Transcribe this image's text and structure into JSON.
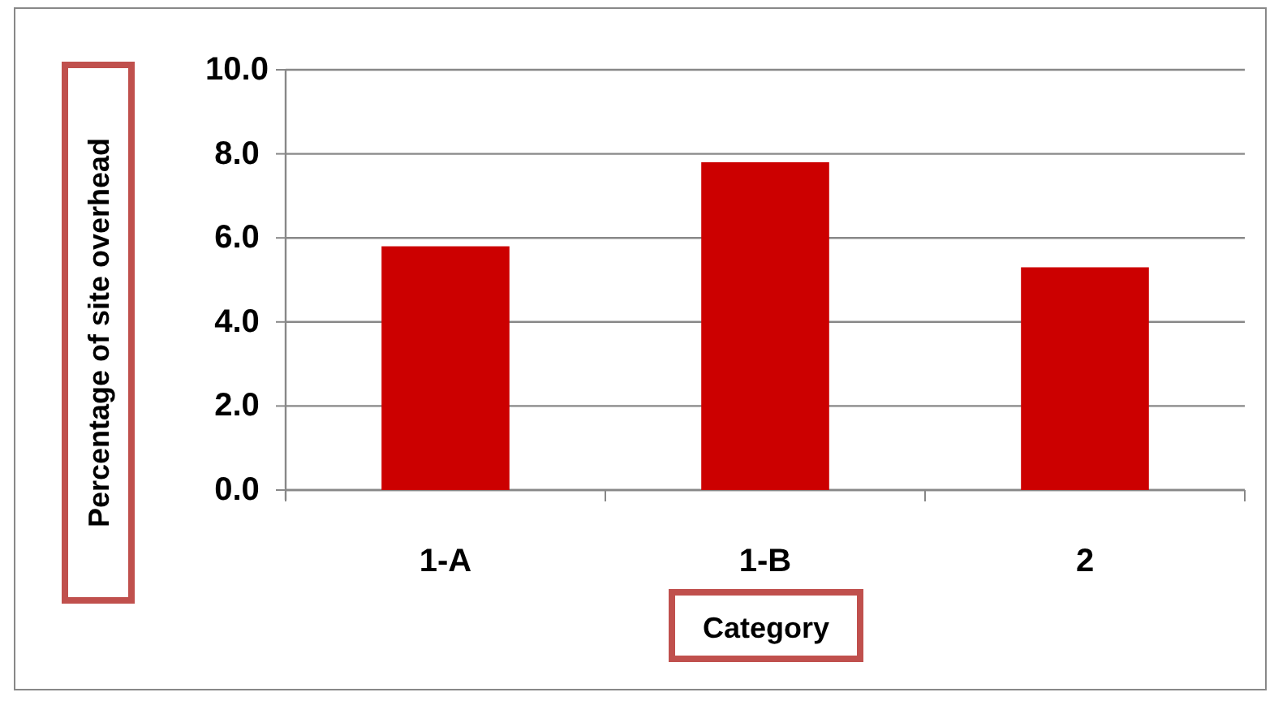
{
  "chart_data": {
    "type": "bar",
    "xlabel": "Category",
    "ylabel": "Percentage of site overhead",
    "categories": [
      "1-A",
      "1-B",
      "2"
    ],
    "values": [
      5.8,
      7.8,
      5.3
    ],
    "color": "#cc0000",
    "ylim": [
      0,
      10
    ],
    "yticks": [
      {
        "value": 0,
        "label": "0.0"
      },
      {
        "value": 2,
        "label": "2.0"
      },
      {
        "value": 4,
        "label": "4.0"
      },
      {
        "value": 6,
        "label": "6.0"
      },
      {
        "value": 8,
        "label": "8.0"
      },
      {
        "value": 10,
        "label": "10.0"
      }
    ],
    "grid": "y"
  }
}
